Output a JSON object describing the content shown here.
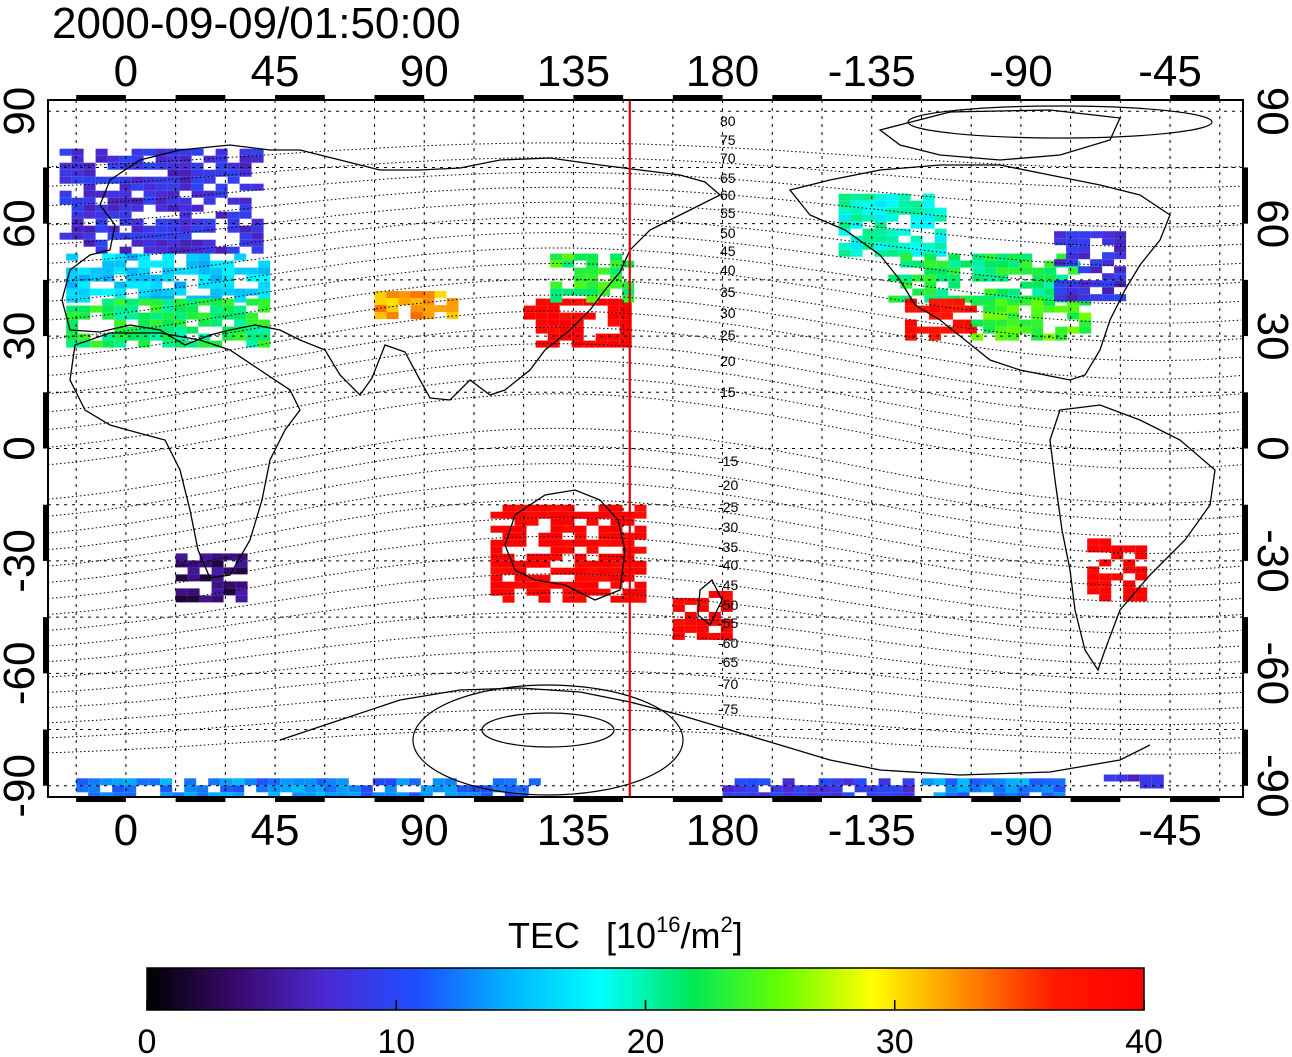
{
  "timestamp": "2000-09-09/01:50:00",
  "lon_ticks": [
    "0",
    "45",
    "90",
    "135",
    "180",
    "-135",
    "-90",
    "-45"
  ],
  "lat_ticks": [
    "90",
    "60",
    "30",
    "0",
    "-30",
    "-60",
    "-90"
  ],
  "contour_labels_north": [
    "80",
    "75",
    "70",
    "65",
    "60",
    "55",
    "50",
    "45",
    "40",
    "35",
    "30",
    "25",
    "20",
    "15"
  ],
  "contour_labels_south": [
    "-15",
    "-20",
    "-25",
    "-30",
    "-35",
    "-40",
    "-45",
    "-50",
    "-55",
    "-60",
    "-65",
    "-70",
    "-75"
  ],
  "colorbar": {
    "title": "TEC",
    "unit_prefix": "[10",
    "unit_exp": "16",
    "unit_mid": "/m",
    "unit_exp2": "2",
    "unit_suffix": "]",
    "ticks": [
      "0",
      "10",
      "20",
      "30",
      "40"
    ],
    "stops": [
      "#000000",
      "#3a0a6e",
      "#4b2ad6",
      "#1e50ff",
      "#00b4ff",
      "#00ffff",
      "#00e85a",
      "#66ff00",
      "#ffff00",
      "#ff8c00",
      "#ff1a00",
      "#ff0000"
    ]
  },
  "map_data": {
    "map_lon_range": [
      -23.5,
      337
    ],
    "map_lat_range": [
      -93,
      93
    ],
    "meridian_marker_lon": 152,
    "tec_range": [
      0,
      40
    ],
    "regions": [
      {
        "lon": [
          -20,
          40
        ],
        "lat": [
          52,
          80
        ],
        "tec": 8
      },
      {
        "lon": [
          -18,
          40
        ],
        "lat": [
          40,
          52
        ],
        "tec": 16
      },
      {
        "lon": [
          -18,
          40
        ],
        "lat": [
          28,
          40
        ],
        "tec": 22
      },
      {
        "lon": [
          15,
          35
        ],
        "lat": [
          -40,
          -28
        ],
        "tec": 4
      },
      {
        "lon": [
          120,
          150
        ],
        "lat": [
          28,
          40
        ],
        "tec": 40
      },
      {
        "lon": [
          128,
          150
        ],
        "lat": [
          40,
          52
        ],
        "tec": 23
      },
      {
        "lon": [
          215,
          245
        ],
        "lat": [
          52,
          68
        ],
        "tec": 19
      },
      {
        "lon": [
          230,
          285
        ],
        "lat": [
          40,
          52
        ],
        "tec": 22
      },
      {
        "lon": [
          235,
          255
        ],
        "lat": [
          30,
          40
        ],
        "tec": 38
      },
      {
        "lon": [
          255,
          290
        ],
        "lat": [
          30,
          40
        ],
        "tec": 24
      },
      {
        "lon": [
          280,
          300
        ],
        "lat": [
          40,
          58
        ],
        "tec": 8
      },
      {
        "lon": [
          290,
          306
        ],
        "lat": [
          -40,
          -24
        ],
        "tec": 40
      },
      {
        "lon": [
          110,
          155
        ],
        "lat": [
          -40,
          -15
        ],
        "tec": 40
      },
      {
        "lon": [
          165,
          180
        ],
        "lat": [
          -50,
          -38
        ],
        "tec": 40
      },
      {
        "lon": [
          75,
          100
        ],
        "lat": [
          35,
          42
        ],
        "tec": 32
      },
      {
        "lon": [
          -15,
          60
        ],
        "lat": [
          -93,
          -88
        ],
        "tec": 13
      },
      {
        "lon": [
          60,
          125
        ],
        "lat": [
          -93,
          -88
        ],
        "tec": 12
      },
      {
        "lon": [
          180,
          240
        ],
        "lat": [
          -93,
          -88
        ],
        "tec": 9
      },
      {
        "lon": [
          240,
          280
        ],
        "lat": [
          -93,
          -88
        ],
        "tec": 13
      },
      {
        "lon": [
          295,
          310
        ],
        "lat": [
          -90,
          -87
        ],
        "tec": 8
      }
    ]
  }
}
